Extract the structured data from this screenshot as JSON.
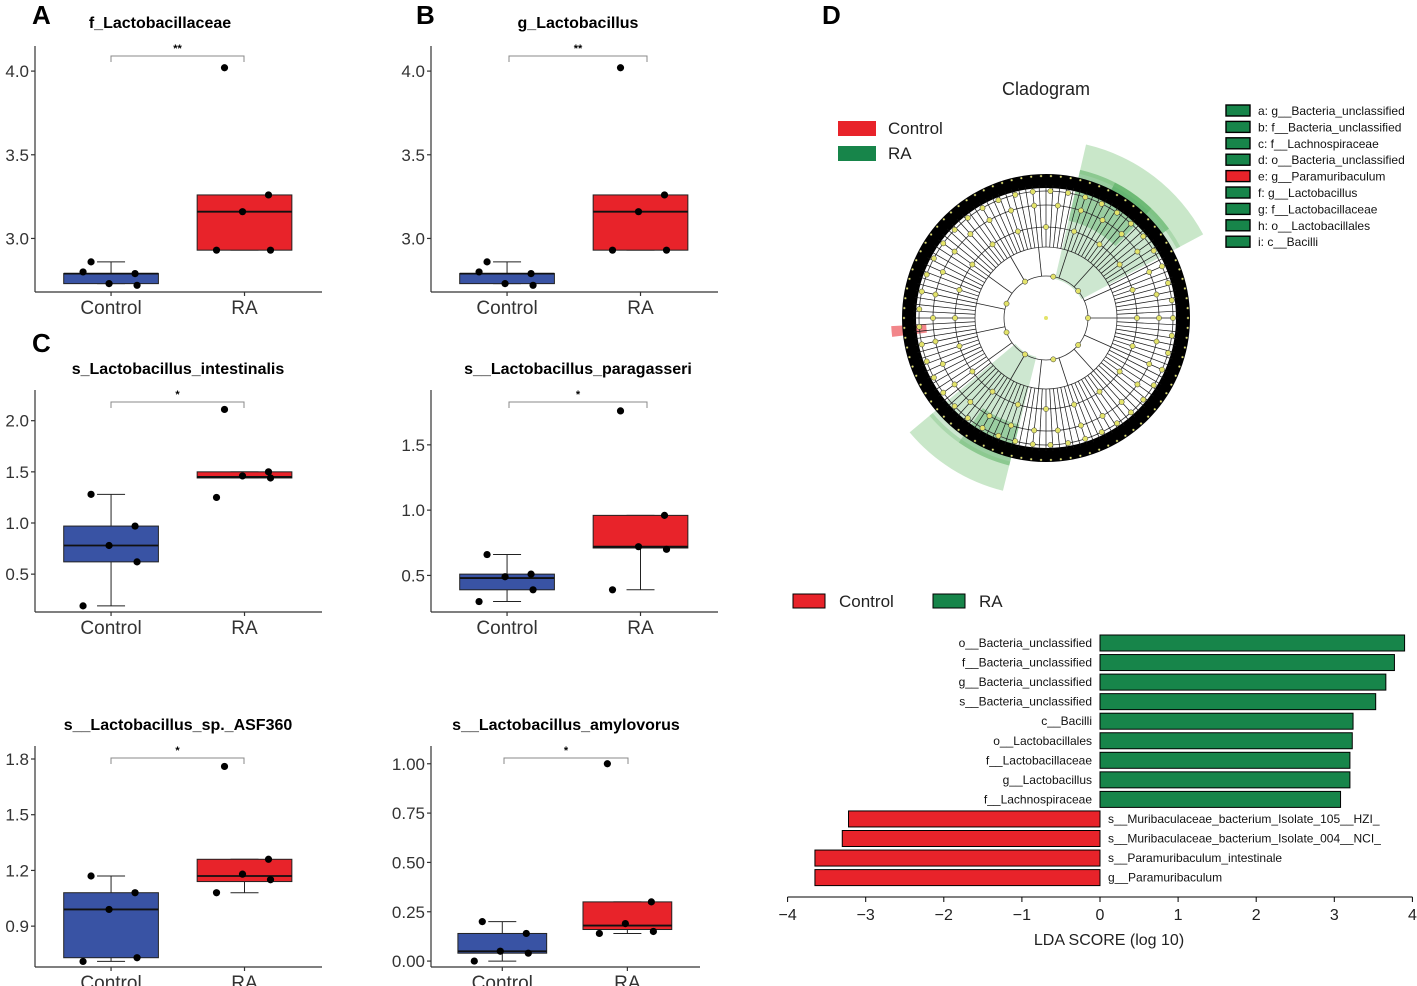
{
  "panel_letters": {
    "A": "A",
    "B": "B",
    "C": "C",
    "D": "D"
  },
  "colors": {
    "control": "#e8232a",
    "ra": "#17854a",
    "box_control": "#3953a4",
    "box_ra": "#e8232a",
    "axis": "#333333"
  },
  "chart_data": [
    {
      "id": "box-a",
      "type": "box",
      "title": "f_Lactobacillaceae",
      "significance": "**",
      "categories": [
        "Control",
        "RA"
      ],
      "yticks": [
        3.0,
        3.5,
        4.0
      ],
      "ylim": [
        2.68,
        4.15
      ],
      "boxes": [
        {
          "group": "Control",
          "q1": 2.73,
          "median": 2.79,
          "q3": 2.79,
          "whisker_low": 2.73,
          "whisker_high": 2.86,
          "points": [
            2.86,
            2.79,
            2.73,
            2.72,
            2.8
          ]
        },
        {
          "group": "RA",
          "q1": 2.93,
          "median": 3.16,
          "q3": 3.26,
          "whisker_low": 2.93,
          "whisker_high": 3.26,
          "points": [
            4.02,
            3.26,
            3.16,
            2.93,
            2.93
          ]
        }
      ]
    },
    {
      "id": "box-b",
      "type": "box",
      "title": "g_Lactobacillus",
      "significance": "**",
      "categories": [
        "Control",
        "RA"
      ],
      "yticks": [
        3.0,
        3.5,
        4.0
      ],
      "ylim": [
        2.68,
        4.15
      ],
      "boxes": [
        {
          "group": "Control",
          "q1": 2.73,
          "median": 2.79,
          "q3": 2.79,
          "whisker_low": 2.73,
          "whisker_high": 2.86,
          "points": [
            2.86,
            2.79,
            2.73,
            2.72,
            2.8
          ]
        },
        {
          "group": "RA",
          "q1": 2.93,
          "median": 3.16,
          "q3": 3.26,
          "whisker_low": 2.93,
          "whisker_high": 3.26,
          "points": [
            4.02,
            3.26,
            3.16,
            2.93,
            2.93
          ]
        }
      ]
    },
    {
      "id": "box-c1",
      "type": "box",
      "title": "s_Lactobacillus_intestinalis",
      "significance": "*",
      "categories": [
        "Control",
        "RA"
      ],
      "yticks": [
        0.5,
        1.0,
        1.5,
        2.0
      ],
      "ylim": [
        0.13,
        2.3
      ],
      "boxes": [
        {
          "group": "Control",
          "q1": 0.62,
          "median": 0.78,
          "q3": 0.97,
          "whisker_low": 0.19,
          "whisker_high": 1.28,
          "points": [
            1.28,
            0.97,
            0.78,
            0.62,
            0.19
          ]
        },
        {
          "group": "RA",
          "q1": 1.44,
          "median": 1.45,
          "q3": 1.5,
          "whisker_low": 1.44,
          "whisker_high": 1.5,
          "points": [
            2.11,
            1.5,
            1.46,
            1.44,
            1.25
          ]
        }
      ]
    },
    {
      "id": "box-c2",
      "type": "box",
      "title": "s__Lactobacillus_paragasseri",
      "significance": "*",
      "categories": [
        "Control",
        "RA"
      ],
      "yticks": [
        0.5,
        1.0,
        1.5
      ],
      "ylim": [
        0.22,
        1.92
      ],
      "boxes": [
        {
          "group": "Control",
          "q1": 0.39,
          "median": 0.48,
          "q3": 0.51,
          "whisker_low": 0.3,
          "whisker_high": 0.66,
          "points": [
            0.66,
            0.51,
            0.49,
            0.39,
            0.3
          ]
        },
        {
          "group": "RA",
          "q1": 0.71,
          "median": 0.72,
          "q3": 0.96,
          "whisker_low": 0.39,
          "whisker_high": 0.96,
          "points": [
            1.76,
            0.96,
            0.72,
            0.7,
            0.39
          ]
        }
      ]
    },
    {
      "id": "box-c3",
      "type": "box",
      "title": "s__Lactobacillus_sp._ASF360",
      "significance": "*",
      "categories": [
        "Control",
        "RA"
      ],
      "yticks": [
        0.9,
        1.2,
        1.5,
        1.8
      ],
      "ylim": [
        0.68,
        1.87
      ],
      "boxes": [
        {
          "group": "Control",
          "q1": 0.73,
          "median": 0.99,
          "q3": 1.08,
          "whisker_low": 0.71,
          "whisker_high": 1.17,
          "points": [
            1.17,
            1.08,
            0.99,
            0.73,
            0.71
          ]
        },
        {
          "group": "RA",
          "q1": 1.14,
          "median": 1.17,
          "q3": 1.26,
          "whisker_low": 1.08,
          "whisker_high": 1.26,
          "points": [
            1.76,
            1.26,
            1.18,
            1.15,
            1.08
          ]
        }
      ]
    },
    {
      "id": "box-c4",
      "type": "box",
      "title": "s__Lactobacillus_amylovorus",
      "significance": "*",
      "categories": [
        "Control",
        "RA"
      ],
      "yticks": [
        0.0,
        0.25,
        0.5,
        0.75,
        1.0
      ],
      "ytick_labels": [
        "0.00",
        "0.25",
        "0.50",
        "0.75",
        "1.00"
      ],
      "ylim": [
        -0.03,
        1.09
      ],
      "boxes": [
        {
          "group": "Control",
          "q1": 0.04,
          "median": 0.05,
          "q3": 0.14,
          "whisker_low": 0.0,
          "whisker_high": 0.2,
          "points": [
            0.2,
            0.14,
            0.05,
            0.04,
            0.0
          ]
        },
        {
          "group": "RA",
          "q1": 0.16,
          "median": 0.18,
          "q3": 0.3,
          "whisker_low": 0.14,
          "whisker_high": 0.3,
          "points": [
            1.0,
            0.3,
            0.19,
            0.15,
            0.14
          ]
        }
      ]
    },
    {
      "id": "lda",
      "type": "bar",
      "orientation": "horizontal",
      "legend": [
        {
          "label": "Control",
          "color": "#e8232a"
        },
        {
          "label": "RA",
          "color": "#17854a"
        }
      ],
      "xlabel": "LDA SCORE (log 10)",
      "xlim": [
        -4,
        4
      ],
      "xticks": [
        -4,
        -3,
        -2,
        -1,
        0,
        1,
        2,
        3,
        4
      ],
      "bars": [
        {
          "label": "o__Bacteria_unclassified",
          "value": 3.9,
          "group": "RA"
        },
        {
          "label": "f__Bacteria_unclassified",
          "value": 3.77,
          "group": "RA"
        },
        {
          "label": "g__Bacteria_unclassified",
          "value": 3.66,
          "group": "RA"
        },
        {
          "label": "s__Bacteria_unclassified",
          "value": 3.53,
          "group": "RA"
        },
        {
          "label": "c__Bacilli",
          "value": 3.24,
          "group": "RA"
        },
        {
          "label": "o__Lactobacillales",
          "value": 3.23,
          "group": "RA"
        },
        {
          "label": "f__Lactobacillaceae",
          "value": 3.2,
          "group": "RA"
        },
        {
          "label": "g__Lactobacillus",
          "value": 3.2,
          "group": "RA"
        },
        {
          "label": "f__Lachnospiraceae",
          "value": 3.08,
          "group": "RA"
        },
        {
          "label": "s__Muribaculaceae_bacterium_Isolate_105__HZI_",
          "value": -3.22,
          "group": "Control"
        },
        {
          "label": "s__Muribaculaceae_bacterium_Isolate_004__NCI_",
          "value": -3.3,
          "group": "Control"
        },
        {
          "label": "s__Paramuribaculum_intestinale",
          "value": -3.65,
          "group": "Control"
        },
        {
          "label": "g__Paramuribaculum",
          "value": -3.65,
          "group": "Control"
        }
      ]
    },
    {
      "id": "cladogram",
      "type": "other",
      "title": "Cladogram",
      "legend": [
        {
          "label": "Control",
          "color": "#e8232a"
        },
        {
          "label": "RA",
          "color": "#17854a"
        }
      ],
      "taxa": [
        {
          "label": "a: g__Bacteria_unclassified",
          "group": "RA"
        },
        {
          "label": "b: f__Bacteria_unclassified",
          "group": "RA"
        },
        {
          "label": "c: f__Lachnospiraceae",
          "group": "RA"
        },
        {
          "label": "d: o__Bacteria_unclassified",
          "group": "RA"
        },
        {
          "label": "e: g__Paramuribaculum",
          "group": "Control"
        },
        {
          "label": "f: g__Lactobacillus",
          "group": "RA"
        },
        {
          "label": "g: f__Lactobacillaceae",
          "group": "RA"
        },
        {
          "label": "h: o__Lactobacillales",
          "group": "RA"
        },
        {
          "label": "i: c__Bacilli",
          "group": "RA"
        }
      ]
    }
  ]
}
